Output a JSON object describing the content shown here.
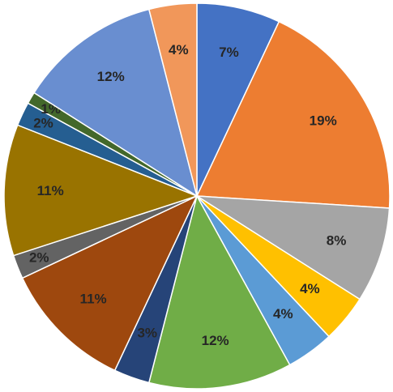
{
  "chart_data": {
    "type": "pie",
    "values": [
      7,
      19,
      8,
      4,
      4,
      12,
      3,
      11,
      2,
      11,
      2,
      1,
      12,
      4
    ],
    "value_labels": [
      "7%",
      "19%",
      "8%",
      "4%",
      "4%",
      "12%",
      "3%",
      "11%",
      "2%",
      "11%",
      "2%",
      "1%",
      "12%",
      "4%"
    ],
    "colors": [
      "#4472c4",
      "#ed7d31",
      "#a5a5a5",
      "#ffc000",
      "#5b9bd5",
      "#70ad47",
      "#264478",
      "#9e480e",
      "#636363",
      "#997300",
      "#255e91",
      "#43682b",
      "#698ed0",
      "#f1975a"
    ]
  }
}
